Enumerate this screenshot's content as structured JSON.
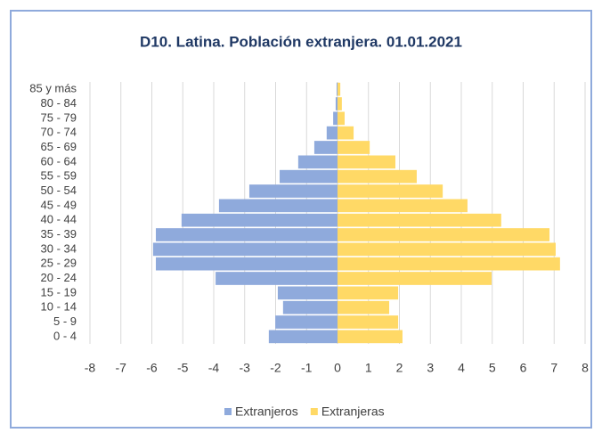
{
  "chart_data": {
    "type": "bar",
    "orientation": "horizontal",
    "title": "D10. Latina. Población extranjera. 01.01.2021",
    "categories": [
      "0 - 4",
      "5 - 9",
      "10 - 14",
      "15 - 19",
      "20 - 24",
      "25 - 29",
      "30 - 34",
      "35 - 39",
      "40 - 44",
      "45 - 49",
      "50 - 54",
      "55 - 59",
      "60 - 64",
      "65 - 69",
      "70 - 74",
      "75 - 79",
      "80 - 84",
      "85 y más"
    ],
    "series": [
      {
        "name": "Extranjeros",
        "color": "#8faadc",
        "values": [
          -2.22,
          -2.01,
          -1.76,
          -1.93,
          -3.94,
          -5.87,
          -5.96,
          -5.87,
          -5.04,
          -3.83,
          -2.85,
          -1.87,
          -1.27,
          -0.75,
          -0.35,
          -0.14,
          -0.06,
          -0.03
        ]
      },
      {
        "name": "Extranjeras",
        "color": "#ffd966",
        "values": [
          2.1,
          1.96,
          1.67,
          1.96,
          4.98,
          7.19,
          7.05,
          6.85,
          5.29,
          4.2,
          3.4,
          2.56,
          1.87,
          1.04,
          0.52,
          0.23,
          0.14,
          0.09
        ]
      }
    ],
    "xlim": [
      -8,
      8
    ],
    "xticks": [
      -8,
      -7,
      -6,
      -5,
      -4,
      -3,
      -2,
      -1,
      0,
      1,
      2,
      3,
      4,
      5,
      6,
      7,
      8
    ],
    "grid": true,
    "legend": "bottom"
  }
}
